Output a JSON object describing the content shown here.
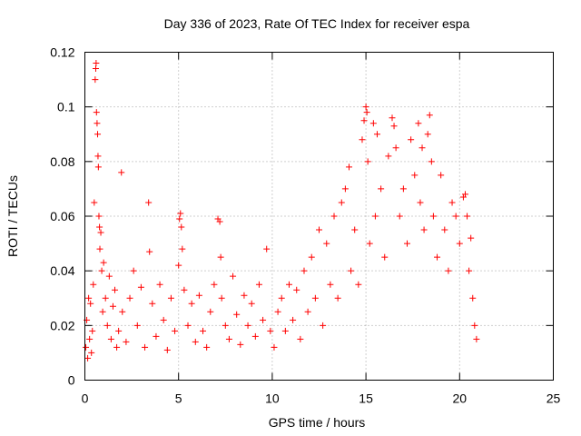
{
  "chart_data": {
    "type": "scatter",
    "title": "Day 336 of 2023, Rate Of TEC Index for receiver espa",
    "xlabel": "GPS time / hours",
    "ylabel": "ROTI / TECUs",
    "xlim": [
      0,
      25
    ],
    "ylim": [
      0,
      0.12
    ],
    "xticks": [
      0,
      5,
      10,
      15,
      20,
      25
    ],
    "xtick_labels": [
      "0",
      "5",
      "10",
      "15",
      "20",
      "25"
    ],
    "yticks": [
      0,
      0.02,
      0.04,
      0.06,
      0.08,
      0.1,
      0.12
    ],
    "ytick_labels": [
      "0",
      "0.02",
      "0.04",
      "0.06",
      "0.08",
      "0.1",
      "0.12"
    ],
    "grid": true,
    "marker": "+",
    "color": "#ff0000",
    "series": [
      {
        "points": [
          [
            0.05,
            0.012
          ],
          [
            0.1,
            0.022
          ],
          [
            0.15,
            0.008
          ],
          [
            0.2,
            0.03
          ],
          [
            0.25,
            0.015
          ],
          [
            0.3,
            0.028
          ],
          [
            0.35,
            0.01
          ],
          [
            0.4,
            0.018
          ],
          [
            0.45,
            0.035
          ],
          [
            0.5,
            0.065
          ],
          [
            0.55,
            0.11
          ],
          [
            0.58,
            0.114
          ],
          [
            0.6,
            0.116
          ],
          [
            0.62,
            0.098
          ],
          [
            0.65,
            0.094
          ],
          [
            0.68,
            0.09
          ],
          [
            0.7,
            0.082
          ],
          [
            0.72,
            0.078
          ],
          [
            0.75,
            0.06
          ],
          [
            0.78,
            0.056
          ],
          [
            0.8,
            0.048
          ],
          [
            0.85,
            0.054
          ],
          [
            0.9,
            0.04
          ],
          [
            0.95,
            0.025
          ],
          [
            1.0,
            0.043
          ],
          [
            1.1,
            0.03
          ],
          [
            1.2,
            0.02
          ],
          [
            1.3,
            0.038
          ],
          [
            1.4,
            0.015
          ],
          [
            1.5,
            0.027
          ],
          [
            1.6,
            0.033
          ],
          [
            1.7,
            0.012
          ],
          [
            1.8,
            0.018
          ],
          [
            1.95,
            0.076
          ],
          [
            2.0,
            0.025
          ],
          [
            2.2,
            0.014
          ],
          [
            2.4,
            0.03
          ],
          [
            2.6,
            0.04
          ],
          [
            2.8,
            0.02
          ],
          [
            3.0,
            0.034
          ],
          [
            3.2,
            0.012
          ],
          [
            3.4,
            0.065
          ],
          [
            3.45,
            0.047
          ],
          [
            3.6,
            0.028
          ],
          [
            3.8,
            0.016
          ],
          [
            4.0,
            0.035
          ],
          [
            4.2,
            0.022
          ],
          [
            4.4,
            0.011
          ],
          [
            4.6,
            0.03
          ],
          [
            4.8,
            0.018
          ],
          [
            5.0,
            0.042
          ],
          [
            5.05,
            0.059
          ],
          [
            5.1,
            0.061
          ],
          [
            5.15,
            0.056
          ],
          [
            5.2,
            0.048
          ],
          [
            5.3,
            0.033
          ],
          [
            5.5,
            0.02
          ],
          [
            5.7,
            0.028
          ],
          [
            5.9,
            0.014
          ],
          [
            6.1,
            0.031
          ],
          [
            6.3,
            0.018
          ],
          [
            6.5,
            0.012
          ],
          [
            6.7,
            0.025
          ],
          [
            6.9,
            0.035
          ],
          [
            7.1,
            0.059
          ],
          [
            7.2,
            0.058
          ],
          [
            7.25,
            0.045
          ],
          [
            7.3,
            0.03
          ],
          [
            7.5,
            0.02
          ],
          [
            7.7,
            0.015
          ],
          [
            7.9,
            0.038
          ],
          [
            8.1,
            0.024
          ],
          [
            8.3,
            0.013
          ],
          [
            8.5,
            0.031
          ],
          [
            8.7,
            0.02
          ],
          [
            8.9,
            0.028
          ],
          [
            9.1,
            0.016
          ],
          [
            9.3,
            0.035
          ],
          [
            9.5,
            0.022
          ],
          [
            9.7,
            0.048
          ],
          [
            9.9,
            0.018
          ],
          [
            10.1,
            0.012
          ],
          [
            10.3,
            0.025
          ],
          [
            10.5,
            0.03
          ],
          [
            10.7,
            0.018
          ],
          [
            10.9,
            0.035
          ],
          [
            11.1,
            0.022
          ],
          [
            11.3,
            0.033
          ],
          [
            11.5,
            0.015
          ],
          [
            11.7,
            0.04
          ],
          [
            11.9,
            0.025
          ],
          [
            12.1,
            0.045
          ],
          [
            12.3,
            0.03
          ],
          [
            12.5,
            0.055
          ],
          [
            12.7,
            0.02
          ],
          [
            12.9,
            0.05
          ],
          [
            13.1,
            0.035
          ],
          [
            13.3,
            0.06
          ],
          [
            13.5,
            0.03
          ],
          [
            13.7,
            0.065
          ],
          [
            13.9,
            0.07
          ],
          [
            14.1,
            0.078
          ],
          [
            14.2,
            0.04
          ],
          [
            14.4,
            0.055
          ],
          [
            14.6,
            0.035
          ],
          [
            14.8,
            0.088
          ],
          [
            14.9,
            0.095
          ],
          [
            15.0,
            0.1
          ],
          [
            15.05,
            0.098
          ],
          [
            15.1,
            0.08
          ],
          [
            15.2,
            0.05
          ],
          [
            15.4,
            0.094
          ],
          [
            15.5,
            0.06
          ],
          [
            15.6,
            0.09
          ],
          [
            15.8,
            0.07
          ],
          [
            16.0,
            0.045
          ],
          [
            16.2,
            0.082
          ],
          [
            16.4,
            0.096
          ],
          [
            16.5,
            0.093
          ],
          [
            16.6,
            0.085
          ],
          [
            16.8,
            0.06
          ],
          [
            17.0,
            0.07
          ],
          [
            17.2,
            0.05
          ],
          [
            17.4,
            0.088
          ],
          [
            17.6,
            0.075
          ],
          [
            17.8,
            0.094
          ],
          [
            17.9,
            0.065
          ],
          [
            18.0,
            0.085
          ],
          [
            18.1,
            0.055
          ],
          [
            18.3,
            0.09
          ],
          [
            18.4,
            0.097
          ],
          [
            18.5,
            0.08
          ],
          [
            18.6,
            0.06
          ],
          [
            18.8,
            0.045
          ],
          [
            19.0,
            0.075
          ],
          [
            19.2,
            0.055
          ],
          [
            19.4,
            0.04
          ],
          [
            19.6,
            0.065
          ],
          [
            19.8,
            0.06
          ],
          [
            20.0,
            0.05
          ],
          [
            20.2,
            0.067
          ],
          [
            20.3,
            0.068
          ],
          [
            20.4,
            0.06
          ],
          [
            20.5,
            0.04
          ],
          [
            20.6,
            0.052
          ],
          [
            20.7,
            0.03
          ],
          [
            20.8,
            0.02
          ],
          [
            20.9,
            0.015
          ]
        ]
      }
    ]
  }
}
